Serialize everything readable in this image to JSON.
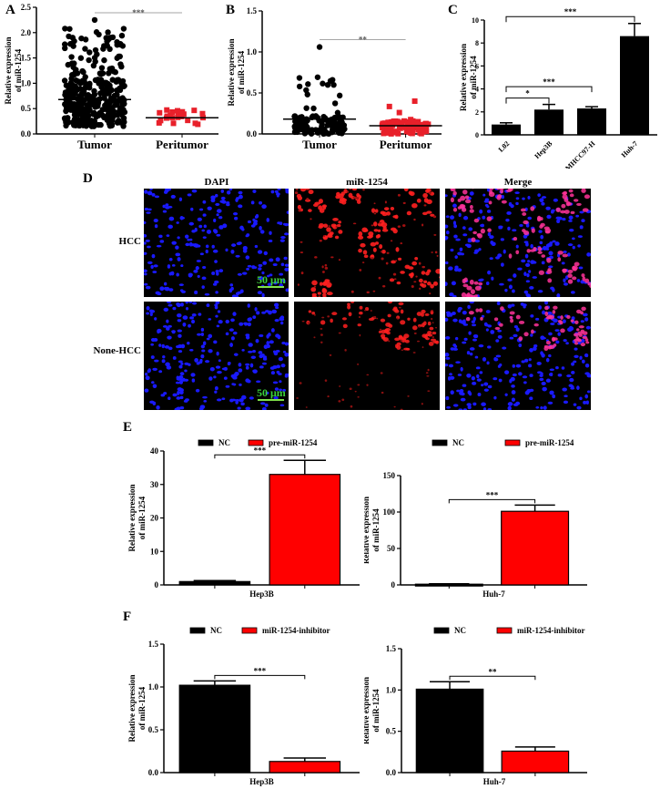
{
  "panels": {
    "A": {
      "letter": "A"
    },
    "B": {
      "letter": "B"
    },
    "C": {
      "letter": "C"
    },
    "D": {
      "letter": "D",
      "columns": [
        "DAPI",
        "miR-1254",
        "Merge"
      ],
      "rows": [
        "HCC",
        "None-HCC"
      ],
      "scale_bar": "50 μm",
      "colors": {
        "dapi": "#1a1aff",
        "mir": "#ff2020",
        "merge": "#ff3399",
        "scale": "#3bd13b"
      }
    },
    "E": {
      "letter": "E"
    },
    "F": {
      "letter": "F"
    }
  },
  "chart_data": [
    {
      "id": "A",
      "type": "scatter",
      "title": "",
      "ylabel": "Relative expression of miR-1254",
      "categories": [
        "Tumor",
        "Peritumor"
      ],
      "ylim": [
        0,
        2.5
      ],
      "yticks": [
        "0.0",
        "0.5",
        "1.0",
        "1.5",
        "2.0",
        "2.5"
      ],
      "series": [
        {
          "name": "Tumor",
          "color": "#000000",
          "marker": "circle",
          "mean": 0.68,
          "range": [
            0.12,
            2.25
          ]
        },
        {
          "name": "Peritumor",
          "color": "#e8202a",
          "marker": "square",
          "mean": 0.32,
          "range": [
            0.15,
            0.52
          ]
        }
      ],
      "annotations": [
        {
          "between": [
            "Tumor",
            "Peritumor"
          ],
          "text": "***"
        }
      ]
    },
    {
      "id": "B",
      "type": "scatter",
      "ylabel": "Relative expression of miR-1254",
      "categories": [
        "Tumor",
        "Peritumor"
      ],
      "ylim": [
        0,
        1.5
      ],
      "yticks": [
        "0.0",
        "0.5",
        "1.0",
        "1.5"
      ],
      "series": [
        {
          "name": "Tumor",
          "color": "#000000",
          "marker": "circle",
          "mean": 0.18,
          "range": [
            0.0,
            1.06
          ]
        },
        {
          "name": "Peritumor",
          "color": "#e8202a",
          "marker": "square",
          "mean": 0.1,
          "range": [
            0.0,
            0.4
          ]
        }
      ],
      "annotations": [
        {
          "between": [
            "Tumor",
            "Peritumor"
          ],
          "text": "**"
        }
      ]
    },
    {
      "id": "C",
      "type": "bar",
      "ylabel": "Relative expression of miR-1254",
      "categories": [
        "L02",
        "Hep3B",
        "MHCC97-H",
        "Huh-7"
      ],
      "values": [
        0.9,
        2.2,
        2.3,
        8.6
      ],
      "errors": [
        0.15,
        0.45,
        0.15,
        1.1
      ],
      "ylim": [
        0,
        10
      ],
      "yticks": [
        "0",
        "2",
        "4",
        "6",
        "8",
        "10"
      ],
      "color": "#000000",
      "annotations": [
        {
          "between": [
            "L02",
            "Hep3B"
          ],
          "text": "*"
        },
        {
          "between": [
            "L02",
            "MHCC97-H"
          ],
          "text": "***"
        },
        {
          "between": [
            "L02",
            "Huh-7"
          ],
          "text": "***"
        }
      ]
    },
    {
      "id": "E-Hep3B",
      "type": "bar",
      "ylabel": "Relative expression of miR-1254",
      "xlabel": "Hep3B",
      "legend": [
        {
          "name": "NC",
          "color": "#000000"
        },
        {
          "name": "pre-miR-1254",
          "color": "#ff0000"
        }
      ],
      "categories": [
        "NC",
        "pre-miR-1254"
      ],
      "values": [
        1.0,
        33.0
      ],
      "errors": [
        0.3,
        4.2
      ],
      "ylim": [
        0,
        40
      ],
      "yticks": [
        "0",
        "10",
        "20",
        "30",
        "40"
      ],
      "annotations": [
        {
          "text": "***"
        }
      ]
    },
    {
      "id": "E-Huh-7",
      "type": "bar",
      "ylabel": "Relative expression of miR-1254",
      "xlabel": "Huh-7",
      "legend": [
        {
          "name": "NC",
          "color": "#000000"
        },
        {
          "name": "pre-miR-1254",
          "color": "#ff0000"
        }
      ],
      "categories": [
        "NC",
        "pre-miR-1254"
      ],
      "values": [
        1.0,
        101.0
      ],
      "errors": [
        0.5,
        8.5
      ],
      "ylim": [
        0,
        150
      ],
      "yticks": [
        "0",
        "50",
        "100",
        "150"
      ],
      "annotations": [
        {
          "text": "***"
        }
      ]
    },
    {
      "id": "F-Hep3B",
      "type": "bar",
      "ylabel": "Relative expression of miR-1254",
      "xlabel": "Hep3B",
      "legend": [
        {
          "name": "NC",
          "color": "#000000"
        },
        {
          "name": "miR-1254-inhibitor",
          "color": "#ff0000"
        }
      ],
      "categories": [
        "NC",
        "miR-1254-inhibitor"
      ],
      "values": [
        1.02,
        0.13
      ],
      "errors": [
        0.05,
        0.04
      ],
      "ylim": [
        0,
        1.5
      ],
      "yticks": [
        "0.0",
        "0.5",
        "1.0",
        "1.5"
      ],
      "annotations": [
        {
          "text": "***"
        }
      ]
    },
    {
      "id": "F-Huh-7",
      "type": "bar",
      "ylabel": "Relative expression of miR-1254",
      "xlabel": "Huh-7",
      "legend": [
        {
          "name": "NC",
          "color": "#000000"
        },
        {
          "name": "miR-1254-inhibitor",
          "color": "#ff0000"
        }
      ],
      "categories": [
        "NC",
        "miR-1254-inhibitor"
      ],
      "values": [
        1.01,
        0.26
      ],
      "errors": [
        0.09,
        0.05
      ],
      "ylim": [
        0,
        1.5
      ],
      "yticks": [
        "0.0",
        "0.5",
        "1.0",
        "1.5"
      ],
      "annotations": [
        {
          "text": "**"
        }
      ]
    }
  ]
}
